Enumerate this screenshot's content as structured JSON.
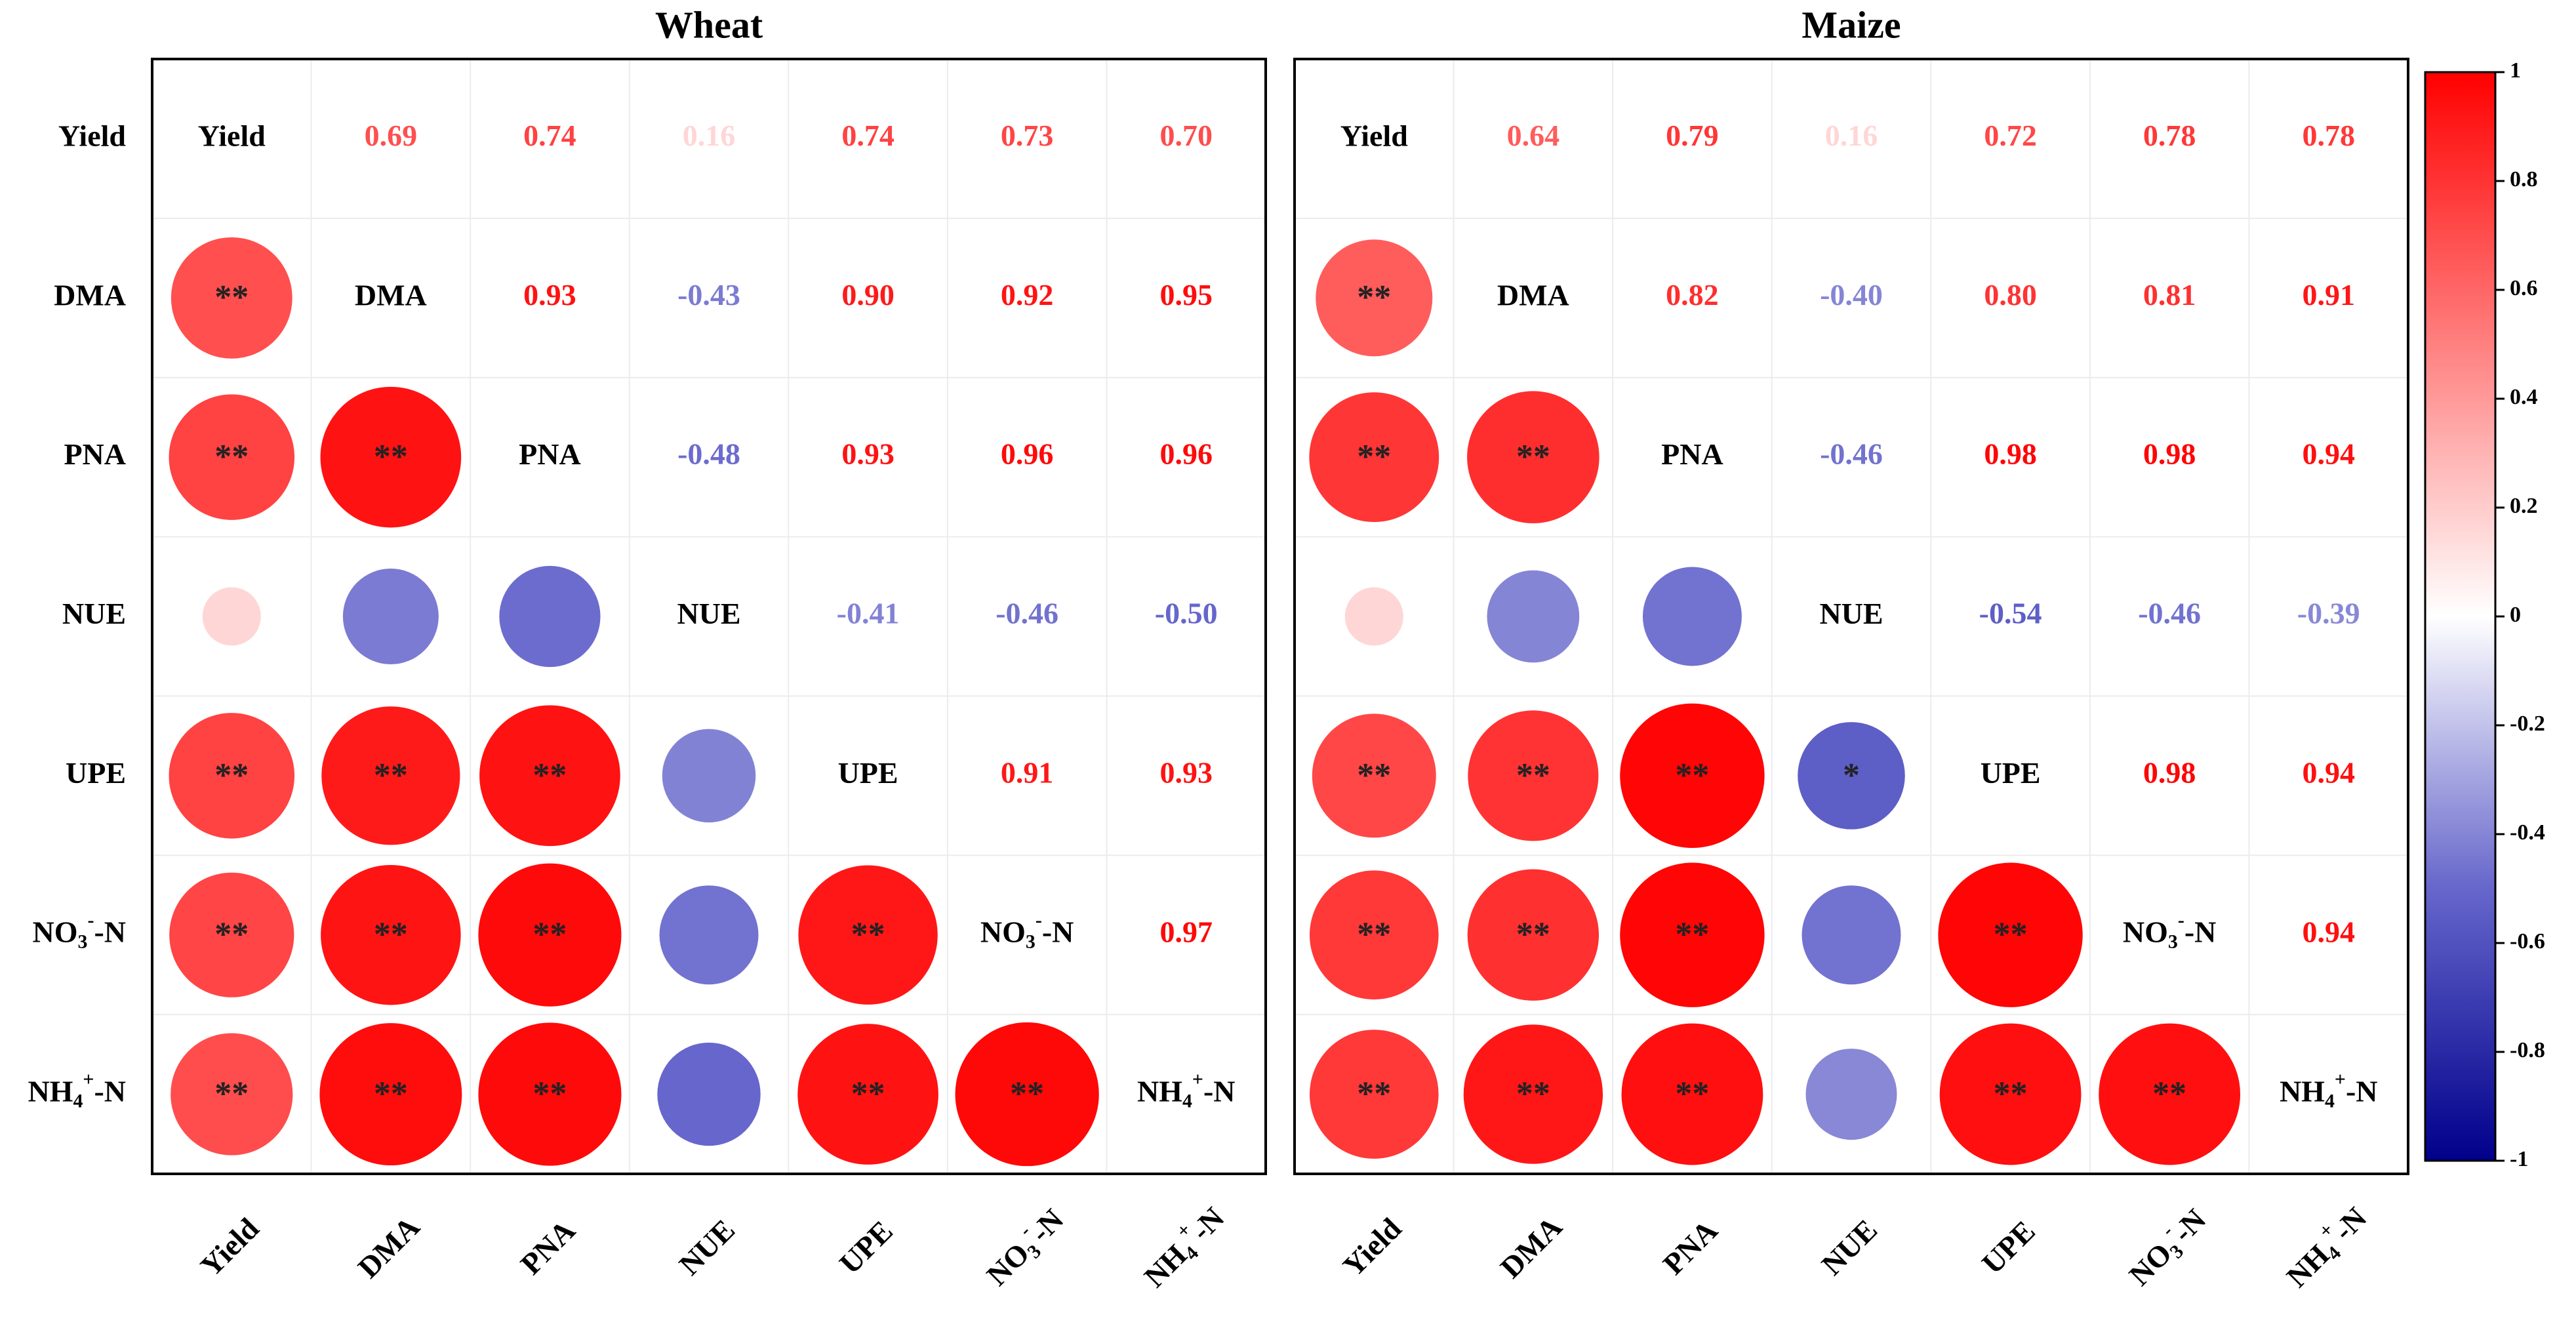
{
  "chart_data": {
    "type": "heatmap",
    "variables": [
      "Yield",
      "DMA",
      "PNA",
      "NUE",
      "UPE",
      "NO3--N",
      "NH4+-N"
    ],
    "variable_labels": [
      {
        "base": "Yield",
        "sup": "",
        "sub": "",
        "tail": ""
      },
      {
        "base": "DMA",
        "sup": "",
        "sub": "",
        "tail": ""
      },
      {
        "base": "PNA",
        "sup": "",
        "sub": "",
        "tail": ""
      },
      {
        "base": "NUE",
        "sup": "",
        "sub": "",
        "tail": ""
      },
      {
        "base": "UPE",
        "sup": "",
        "sub": "",
        "tail": ""
      },
      {
        "base": "NO",
        "sub": "3",
        "sup": "-",
        "tail": "-N"
      },
      {
        "base": "NH",
        "sub": "4",
        "sup": "+",
        "tail": "-N"
      }
    ],
    "panels": [
      {
        "title": "Wheat",
        "correlations": [
          [
            1,
            0.69,
            0.74,
            0.16,
            0.74,
            0.73,
            0.7
          ],
          [
            0.69,
            1,
            0.93,
            -0.43,
            0.9,
            0.92,
            0.95
          ],
          [
            0.74,
            0.93,
            1,
            -0.48,
            0.93,
            0.96,
            0.96
          ],
          [
            0.16,
            -0.43,
            -0.48,
            1,
            -0.41,
            -0.46,
            -0.5
          ],
          [
            0.74,
            0.9,
            0.93,
            -0.41,
            1,
            0.91,
            0.93
          ],
          [
            0.73,
            0.92,
            0.96,
            -0.46,
            0.91,
            1,
            0.97
          ],
          [
            0.7,
            0.95,
            0.96,
            -0.5,
            0.93,
            0.97,
            1
          ]
        ],
        "value_labels": [
          [
            "",
            "0.69",
            "0.74",
            "0.16",
            "0.74",
            "0.73",
            "0.70"
          ],
          [
            "",
            "",
            "0.93",
            "-0.43",
            "0.90",
            "0.92",
            "0.95"
          ],
          [
            "",
            "",
            "",
            "-0.48",
            "0.93",
            "0.96",
            "0.96"
          ],
          [
            "",
            "",
            "",
            "",
            "-0.41",
            "-0.46",
            "-0.50"
          ],
          [
            "",
            "",
            "",
            "",
            "",
            "0.91",
            "0.93"
          ],
          [
            "",
            "",
            "",
            "",
            "",
            "",
            "0.97"
          ],
          [
            "",
            "",
            "",
            "",
            "",
            "",
            ""
          ]
        ],
        "significance": [
          [
            "",
            "",
            "",
            "",
            "",
            "",
            ""
          ],
          [
            "**",
            "",
            "",
            "",
            "",
            "",
            ""
          ],
          [
            "**",
            "**",
            "",
            "",
            "",
            "",
            ""
          ],
          [
            "",
            "",
            "",
            "",
            "",
            "",
            ""
          ],
          [
            "**",
            "**",
            "**",
            "",
            "",
            "",
            ""
          ],
          [
            "**",
            "**",
            "**",
            "",
            "**",
            "",
            ""
          ],
          [
            "**",
            "**",
            "**",
            "",
            "**",
            "**",
            ""
          ]
        ]
      },
      {
        "title": "Maize",
        "correlations": [
          [
            1,
            0.64,
            0.79,
            0.16,
            0.72,
            0.78,
            0.78
          ],
          [
            0.64,
            1,
            0.82,
            -0.4,
            0.8,
            0.81,
            0.91
          ],
          [
            0.79,
            0.82,
            1,
            -0.46,
            0.98,
            0.98,
            0.94
          ],
          [
            0.16,
            -0.4,
            -0.46,
            1,
            -0.54,
            -0.46,
            -0.39
          ],
          [
            0.72,
            0.8,
            0.98,
            -0.54,
            1,
            0.98,
            0.94
          ],
          [
            0.78,
            0.81,
            0.98,
            -0.46,
            0.98,
            1,
            0.94
          ],
          [
            0.78,
            0.91,
            0.94,
            -0.39,
            0.94,
            0.94,
            1
          ]
        ],
        "value_labels": [
          [
            "",
            "0.64",
            "0.79",
            "0.16",
            "0.72",
            "0.78",
            "0.78"
          ],
          [
            "",
            "",
            "0.82",
            "-0.40",
            "0.80",
            "0.81",
            "0.91"
          ],
          [
            "",
            "",
            "",
            "-0.46",
            "0.98",
            "0.98",
            "0.94"
          ],
          [
            "",
            "",
            "",
            "",
            "-0.54",
            "-0.46",
            "-0.39"
          ],
          [
            "",
            "",
            "",
            "",
            "",
            "0.98",
            "0.94"
          ],
          [
            "",
            "",
            "",
            "",
            "",
            "",
            "0.94"
          ],
          [
            "",
            "",
            "",
            "",
            "",
            "",
            ""
          ]
        ],
        "significance": [
          [
            "",
            "",
            "",
            "",
            "",
            "",
            ""
          ],
          [
            "**",
            "",
            "",
            "",
            "",
            "",
            ""
          ],
          [
            "**",
            "**",
            "",
            "",
            "",
            "",
            ""
          ],
          [
            "",
            "",
            "",
            "",
            "",
            "",
            ""
          ],
          [
            "**",
            "**",
            "**",
            "*",
            "",
            "",
            ""
          ],
          [
            "**",
            "**",
            "**",
            "",
            "**",
            "",
            ""
          ],
          [
            "**",
            "**",
            "**",
            "",
            "**",
            "**",
            ""
          ]
        ]
      }
    ],
    "colorbar": {
      "range": [
        -1,
        1
      ],
      "ticks": [
        "1",
        "0.8",
        "0.6",
        "0.4",
        "0.2",
        "0",
        "-0.2",
        "-0.4",
        "-0.6",
        "-0.8",
        "-1"
      ],
      "low_color": "#00008B",
      "mid_color": "#FFFFFF",
      "high_color": "#FF0000"
    },
    "layout_notes": "lower triangle shows circles sized and coloured by r with significance stars; upper triangle shows r values; diagonal shows variable names"
  }
}
